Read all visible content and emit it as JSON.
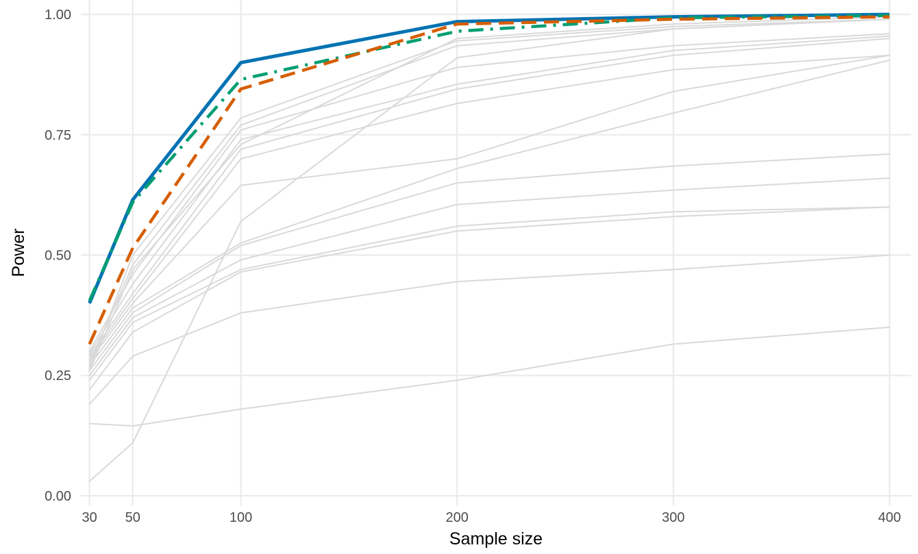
{
  "chart_data": {
    "type": "line",
    "title": "",
    "xlabel": "Sample size",
    "ylabel": "Power",
    "xlim": [
      26,
      410
    ],
    "ylim": [
      -0.02,
      1.03
    ],
    "x": [
      30,
      50,
      100,
      200,
      300,
      400
    ],
    "x_ticks": [
      {
        "value": 30,
        "label": "30"
      },
      {
        "value": 50,
        "label": "50"
      },
      {
        "value": 100,
        "label": "100"
      },
      {
        "value": 200,
        "label": "200"
      },
      {
        "value": 300,
        "label": "300"
      },
      {
        "value": 400,
        "label": "400"
      }
    ],
    "y_ticks": [
      {
        "value": 0.0,
        "label": "0.00"
      },
      {
        "value": 0.25,
        "label": "0.25"
      },
      {
        "value": 0.5,
        "label": "0.50"
      },
      {
        "value": 0.75,
        "label": "0.75"
      },
      {
        "value": 1.0,
        "label": "1.00"
      }
    ],
    "grid": true,
    "legend": "none",
    "background_series_color": "#d9d9d9",
    "background_series": [
      {
        "values": [
          0.03,
          0.11,
          0.57,
          0.91,
          0.97,
          0.99
        ]
      },
      {
        "values": [
          0.15,
          0.145,
          0.18,
          0.24,
          0.315,
          0.35
        ]
      },
      {
        "values": [
          0.19,
          0.29,
          0.38,
          0.445,
          0.47,
          0.5
        ]
      },
      {
        "values": [
          0.22,
          0.34,
          0.465,
          0.55,
          0.58,
          0.6
        ]
      },
      {
        "values": [
          0.24,
          0.36,
          0.47,
          0.56,
          0.59,
          0.6
        ]
      },
      {
        "values": [
          0.25,
          0.37,
          0.49,
          0.605,
          0.635,
          0.66
        ]
      },
      {
        "values": [
          0.26,
          0.38,
          0.52,
          0.65,
          0.685,
          0.71
        ]
      },
      {
        "values": [
          0.27,
          0.39,
          0.525,
          0.68,
          0.795,
          0.905
        ]
      },
      {
        "values": [
          0.28,
          0.4,
          0.645,
          0.7,
          0.84,
          0.915
        ]
      },
      {
        "values": [
          0.285,
          0.41,
          0.7,
          0.815,
          0.885,
          0.915
        ]
      },
      {
        "values": [
          0.29,
          0.42,
          0.72,
          0.845,
          0.915,
          0.95
        ]
      },
      {
        "values": [
          0.295,
          0.44,
          0.74,
          0.855,
          0.925,
          0.955
        ]
      },
      {
        "values": [
          0.3,
          0.46,
          0.76,
          0.89,
          0.935,
          0.96
        ]
      },
      {
        "values": [
          0.275,
          0.48,
          0.77,
          0.935,
          0.97,
          0.99
        ]
      },
      {
        "values": [
          0.265,
          0.5,
          0.785,
          0.945,
          0.975,
          0.99
        ]
      },
      {
        "values": [
          0.26,
          0.47,
          0.73,
          0.95,
          0.98,
          0.995
        ]
      }
    ],
    "series": [
      {
        "color": "#0072B2",
        "dash": "solid",
        "width": 5,
        "values": [
          0.4,
          0.615,
          0.9,
          0.985,
          0.995,
          1.0
        ]
      },
      {
        "color": "#009E73",
        "dash": "dashdot",
        "width": 4.5,
        "values": [
          0.405,
          0.61,
          0.865,
          0.965,
          0.993,
          0.998
        ]
      },
      {
        "color": "#D55E00",
        "dash": "dashed",
        "width": 4.5,
        "values": [
          0.315,
          0.515,
          0.845,
          0.98,
          0.99,
          0.995
        ]
      }
    ]
  }
}
